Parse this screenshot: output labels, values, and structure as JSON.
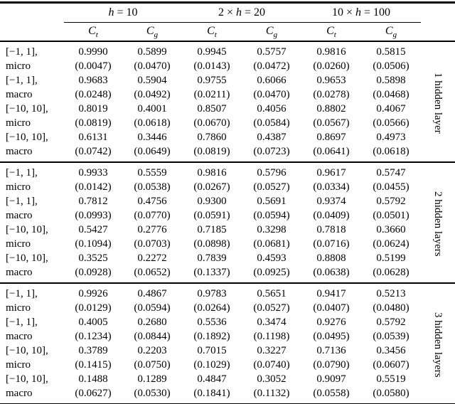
{
  "table": {
    "col_groups": [
      {
        "pre": "",
        "var": "h",
        "post": " = 10"
      },
      {
        "pre": "2 × ",
        "var": "h",
        "post": " = 20"
      },
      {
        "pre": "10 × ",
        "var": "h",
        "post": " = 100"
      }
    ],
    "subcols": [
      {
        "base": "C",
        "sub": "t"
      },
      {
        "base": "C",
        "sub": "g"
      },
      {
        "base": "C",
        "sub": "t"
      },
      {
        "base": "C",
        "sub": "g"
      },
      {
        "base": "C",
        "sub": "t"
      },
      {
        "base": "C",
        "sub": "g"
      }
    ],
    "sections": [
      {
        "side_label": "1 hidden layer",
        "rows": [
          {
            "range": "[−1, 1],",
            "stat": "micro",
            "values": [
              "0.9990",
              "0.5899",
              "0.9945",
              "0.5757",
              "0.9816",
              "0.5815"
            ],
            "stds": [
              "(0.0047)",
              "(0.0470)",
              "(0.0143)",
              "(0.0472)",
              "(0.0260)",
              "(0.0506)"
            ]
          },
          {
            "range": "[−1, 1],",
            "stat": "macro",
            "values": [
              "0.9683",
              "0.5904",
              "0.9755",
              "0.6066",
              "0.9653",
              "0.5898"
            ],
            "stds": [
              "(0.0248)",
              "(0.0492)",
              "(0.0211)",
              "(0.0470)",
              "(0.0278)",
              "(0.0468)"
            ]
          },
          {
            "range": "[−10, 10],",
            "stat": "micro",
            "values": [
              "0.8019",
              "0.4001",
              "0.8507",
              "0.4056",
              "0.8802",
              "0.4067"
            ],
            "stds": [
              "(0.0819)",
              "(0.0618)",
              "(0.0670)",
              "(0.0584)",
              "(0.0567)",
              "(0.0566)"
            ]
          },
          {
            "range": "[−10, 10],",
            "stat": "macro",
            "values": [
              "0.6131",
              "0.3446",
              "0.7860",
              "0.4387",
              "0.8697",
              "0.4973"
            ],
            "stds": [
              "(0.0742)",
              "(0.0649)",
              "(0.0819)",
              "(0.0723)",
              "(0.0641)",
              "(0.0618)"
            ]
          }
        ]
      },
      {
        "side_label": "2 hidden layers",
        "rows": [
          {
            "range": "[−1, 1],",
            "stat": "micro",
            "values": [
              "0.9933",
              "0.5559",
              "0.9816",
              "0.5796",
              "0.9617",
              "0.5747"
            ],
            "stds": [
              "(0.0142)",
              "(0.0538)",
              "(0.0267)",
              "(0.0527)",
              "(0.0334)",
              "(0.0455)"
            ]
          },
          {
            "range": "[−1, 1],",
            "stat": "macro",
            "values": [
              "0.7812",
              "0.4756",
              "0.9300",
              "0.5691",
              "0.9374",
              "0.5792"
            ],
            "stds": [
              "(0.0993)",
              "(0.0770)",
              "(0.0591)",
              "(0.0594)",
              "(0.0409)",
              "(0.0501)"
            ]
          },
          {
            "range": "[−10, 10],",
            "stat": "micro",
            "values": [
              "0.5427",
              "0.2776",
              "0.7185",
              "0.3298",
              "0.7818",
              "0.3660"
            ],
            "stds": [
              "(0.1094)",
              "(0.0703)",
              "(0.0898)",
              "(0.0681)",
              "(0.0716)",
              "(0.0624)"
            ]
          },
          {
            "range": "[−10, 10],",
            "stat": "macro",
            "values": [
              "0.3525",
              "0.2272",
              "0.7839",
              "0.4593",
              "0.8808",
              "0.5199"
            ],
            "stds": [
              "(0.0928)",
              "(0.0652)",
              "(0.1337)",
              "(0.0925)",
              "(0.0638)",
              "(0.0628)"
            ]
          }
        ]
      },
      {
        "side_label": "3 hidden layers",
        "rows": [
          {
            "range": "[−1, 1],",
            "stat": "micro",
            "values": [
              "0.9926",
              "0.4867",
              "0.9783",
              "0.5651",
              "0.9417",
              "0.5213"
            ],
            "stds": [
              "(0.0129)",
              "(0.0594)",
              "(0.0264)",
              "(0.0527)",
              "(0.0407)",
              "(0.0480)"
            ]
          },
          {
            "range": "[−1, 1],",
            "stat": "macro",
            "values": [
              "0.4005",
              "0.2680",
              "0.5536",
              "0.3474",
              "0.9276",
              "0.5792"
            ],
            "stds": [
              "(0.1234)",
              "(0.0844)",
              "(0.1892)",
              "(0.1198)",
              "(0.0495)",
              "(0.0539)"
            ]
          },
          {
            "range": "[−10, 10],",
            "stat": "micro",
            "values": [
              "0.3789",
              "0.2203",
              "0.7015",
              "0.3227",
              "0.7136",
              "0.3456"
            ],
            "stds": [
              "(0.1415)",
              "(0.0750)",
              "(0.1029)",
              "(0.0740)",
              "(0.0790)",
              "(0.0607)"
            ]
          },
          {
            "range": "[−10, 10],",
            "stat": "macro",
            "values": [
              "0.1488",
              "0.1289",
              "0.4847",
              "0.3052",
              "0.9097",
              "0.5519"
            ],
            "stds": [
              "(0.0627)",
              "(0.0530)",
              "(0.1841)",
              "(0.1132)",
              "(0.0558)",
              "(0.0580)"
            ]
          }
        ]
      }
    ]
  }
}
